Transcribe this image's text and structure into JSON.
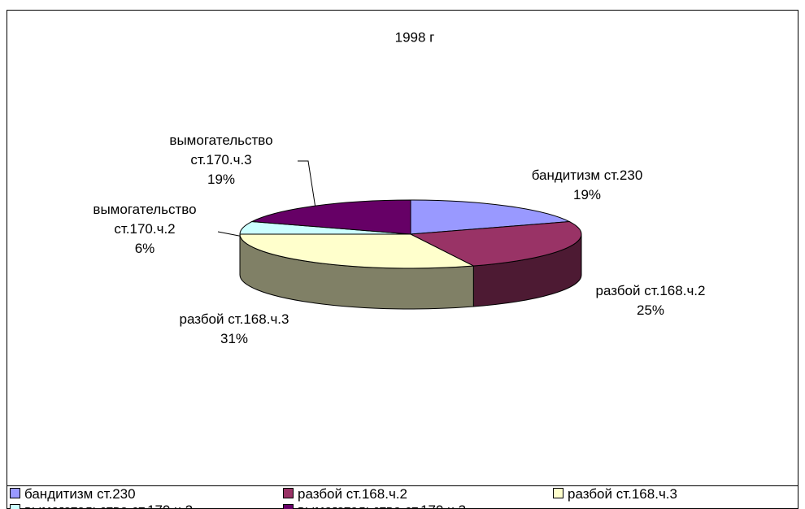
{
  "chart_data": {
    "type": "pie3d",
    "title": "1998 г",
    "categories": [
      "бандитизм ст.230",
      "разбой ст.168.ч.2",
      "разбой ст.168.ч.3",
      "вымогательство ст.170.ч.2",
      "вымогательство ст.170.ч.3"
    ],
    "values": [
      19,
      25,
      31,
      6,
      19
    ],
    "value_labels": [
      "19%",
      "25%",
      "31%",
      "6%",
      "19%"
    ],
    "colors": [
      "#9999ff",
      "#993366",
      "#ffffcc",
      "#ccffff",
      "#660066"
    ],
    "legend": "bottom"
  }
}
